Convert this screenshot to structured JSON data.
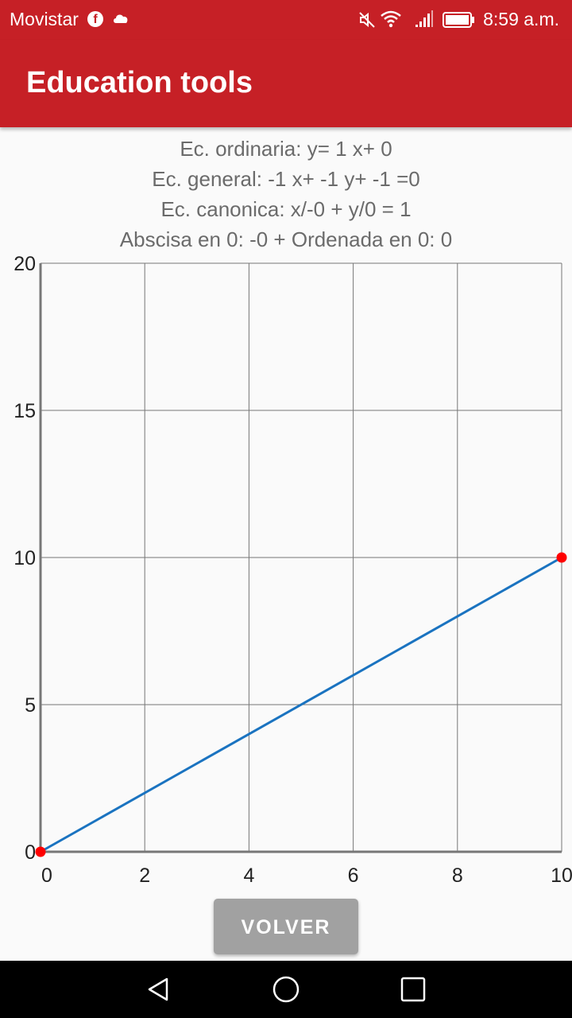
{
  "status_bar": {
    "carrier": "Movistar",
    "time": "8:59 a.m.",
    "icons": [
      "facebook-icon",
      "cloud-icon",
      "mute-icon",
      "wifi-icon",
      "signal-icon",
      "battery-icon"
    ]
  },
  "app_bar": {
    "title": "Education tools"
  },
  "equations": {
    "ordinaria": "Ec. ordinaria: y= 1 x+ 0",
    "general": "Ec. general: -1 x+ -1 y+ -1 =0",
    "canonica": "Ec. canonica: x/-0 + y/0 = 1",
    "intercepts": "Abscisa en 0: -0 + Ordenada en 0: 0"
  },
  "chart_data": {
    "type": "line",
    "x_ticks": [
      "0",
      "2",
      "4",
      "6",
      "8",
      "10"
    ],
    "y_ticks": [
      "0",
      "5",
      "10",
      "15",
      "20"
    ],
    "xlim": [
      0,
      10
    ],
    "ylim": [
      0,
      20
    ],
    "grid": true,
    "series": [
      {
        "x": [
          0,
          10
        ],
        "y": [
          0,
          10
        ],
        "color": "#1a73c0"
      }
    ],
    "points": [
      {
        "x": 0,
        "y": 0,
        "color": "#ff0000"
      },
      {
        "x": 10,
        "y": 10,
        "color": "#ff0000"
      }
    ]
  },
  "button": {
    "label": "VOLVER"
  },
  "nav_bar": {
    "icons": [
      "back-icon",
      "home-icon",
      "recents-icon"
    ]
  }
}
